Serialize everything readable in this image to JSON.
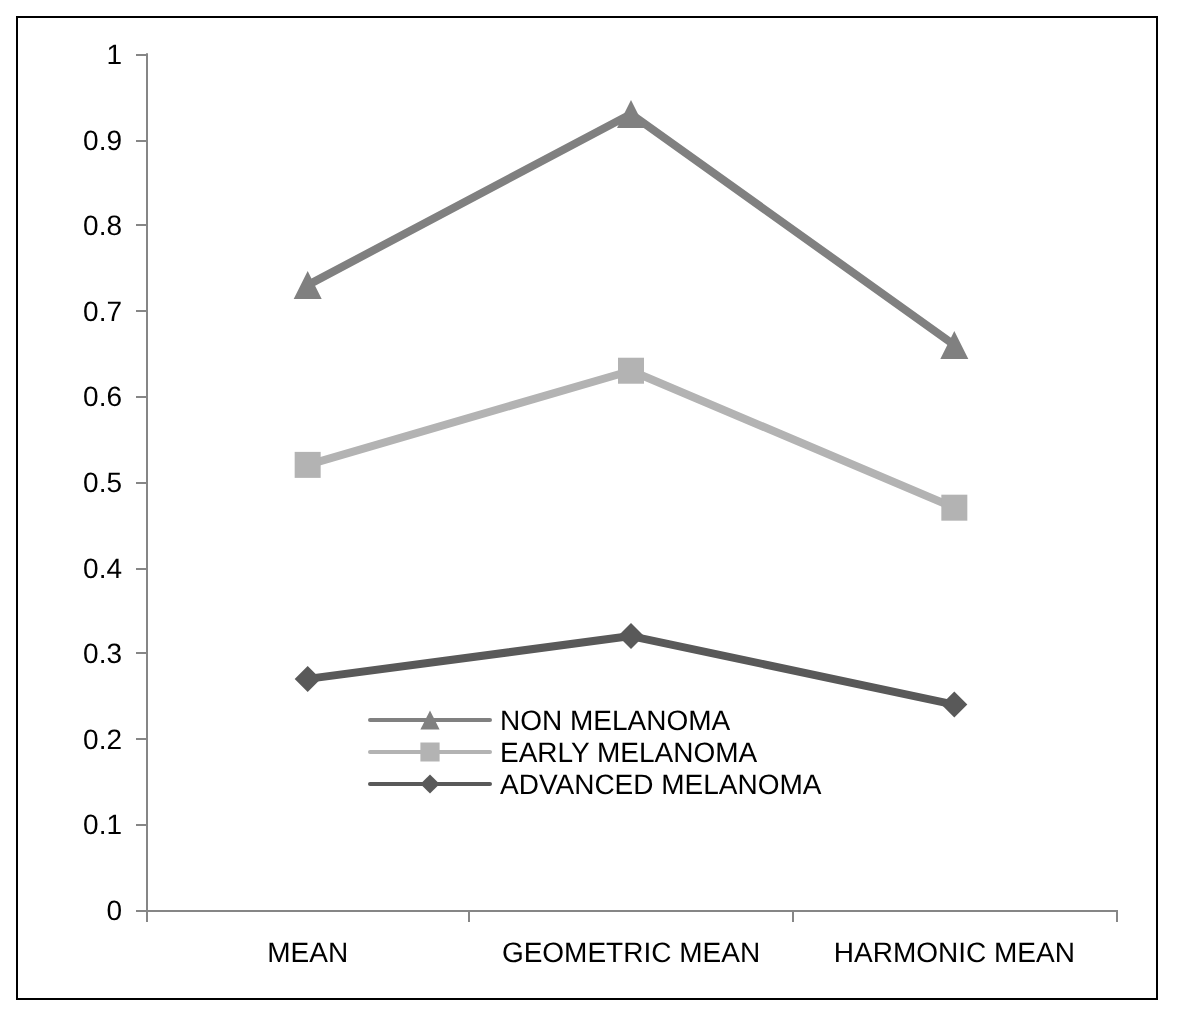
{
  "chart_data": {
    "type": "line",
    "categories": [
      "MEAN",
      "GEOMETRIC MEAN",
      "HARMONIC MEAN"
    ],
    "series": [
      {
        "name": "NON MELANOMA",
        "color": "#808080",
        "marker": "triangle",
        "values": [
          0.73,
          0.93,
          0.66
        ]
      },
      {
        "name": "EARLY MELANOMA",
        "color": "#b3b3b3",
        "marker": "square",
        "values": [
          0.52,
          0.63,
          0.47
        ]
      },
      {
        "name": "ADVANCED MELANOMA",
        "color": "#595959",
        "marker": "diamond",
        "values": [
          0.27,
          0.32,
          0.24
        ]
      }
    ],
    "ylim": [
      0,
      1
    ],
    "yticks": [
      0,
      0.1,
      0.2,
      0.3,
      0.4,
      0.5,
      0.6,
      0.7,
      0.8,
      0.9,
      1
    ],
    "grid": false,
    "legend": "bottom left",
    "line_style": "solid"
  }
}
